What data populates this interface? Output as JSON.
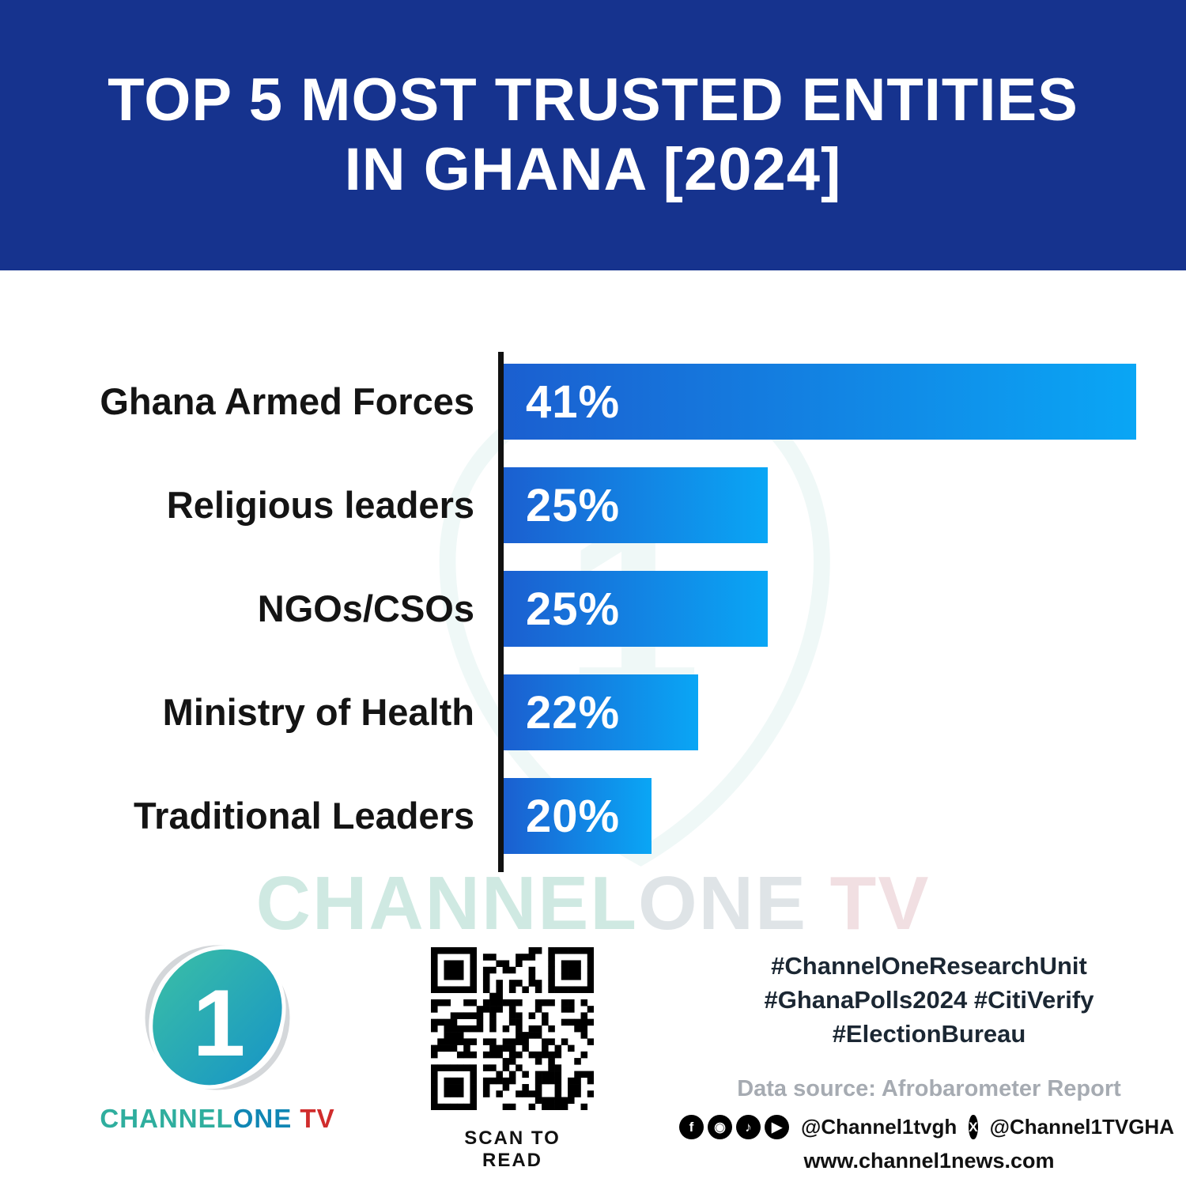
{
  "title": {
    "line1": "TOP 5 MOST TRUSTED ENTITIES",
    "line2": "IN GHANA [2024]"
  },
  "chart_data": {
    "type": "bar",
    "orientation": "horizontal",
    "title": "Top 5 Most Trusted Entities in Ghana [2024]",
    "categories": [
      "Ghana Armed Forces",
      "Religious leaders",
      "NGOs/CSOs",
      "Ministry of Health",
      "Traditional Leaders"
    ],
    "values": [
      41,
      25,
      25,
      22,
      20
    ],
    "value_labels": [
      "41%",
      "25%",
      "25%",
      "22%",
      "20%"
    ],
    "value_suffix": "%",
    "xlim": [
      0,
      41
    ],
    "grid": false,
    "legend": false,
    "bar_color_start": "#1b5fd0",
    "bar_color_end": "#0aa6f5",
    "bar_widths_pct": [
      100,
      41.7,
      41.7,
      30.7,
      23.4
    ]
  },
  "watermark": {
    "part1": "CHANNEL",
    "part2": "ONE",
    "part3": " TV"
  },
  "footer": {
    "logo_numeral": "1",
    "brand": {
      "part1": "CHANNEL",
      "part2": "ONE",
      "part3": " TV"
    },
    "qr_caption": "SCAN TO READ",
    "hashtags": [
      "#ChannelOneResearchUnit",
      "#GhanaPolls2024 #CitiVerify",
      "#ElectionBureau"
    ],
    "data_source": "Data source: Afrobarometer Report",
    "social_icons": [
      {
        "name": "facebook-icon",
        "glyph": "f"
      },
      {
        "name": "instagram-icon",
        "glyph": "◉"
      },
      {
        "name": "tiktok-icon",
        "glyph": "♪"
      },
      {
        "name": "youtube-icon",
        "glyph": "▶"
      }
    ],
    "social_handle_1": "@Channel1tvgh",
    "x_icon_glyph": "X",
    "social_handle_2": "@Channel1TVGHA",
    "website": "www.channel1news.com"
  },
  "colors": {
    "banner_blue": "#16338e",
    "bar_gradient_start": "#1b5fd0",
    "bar_gradient_end": "#0aa6f5",
    "axis_black": "#111111",
    "brand_teal": "#2fae9e",
    "brand_red": "#d02c2c"
  }
}
